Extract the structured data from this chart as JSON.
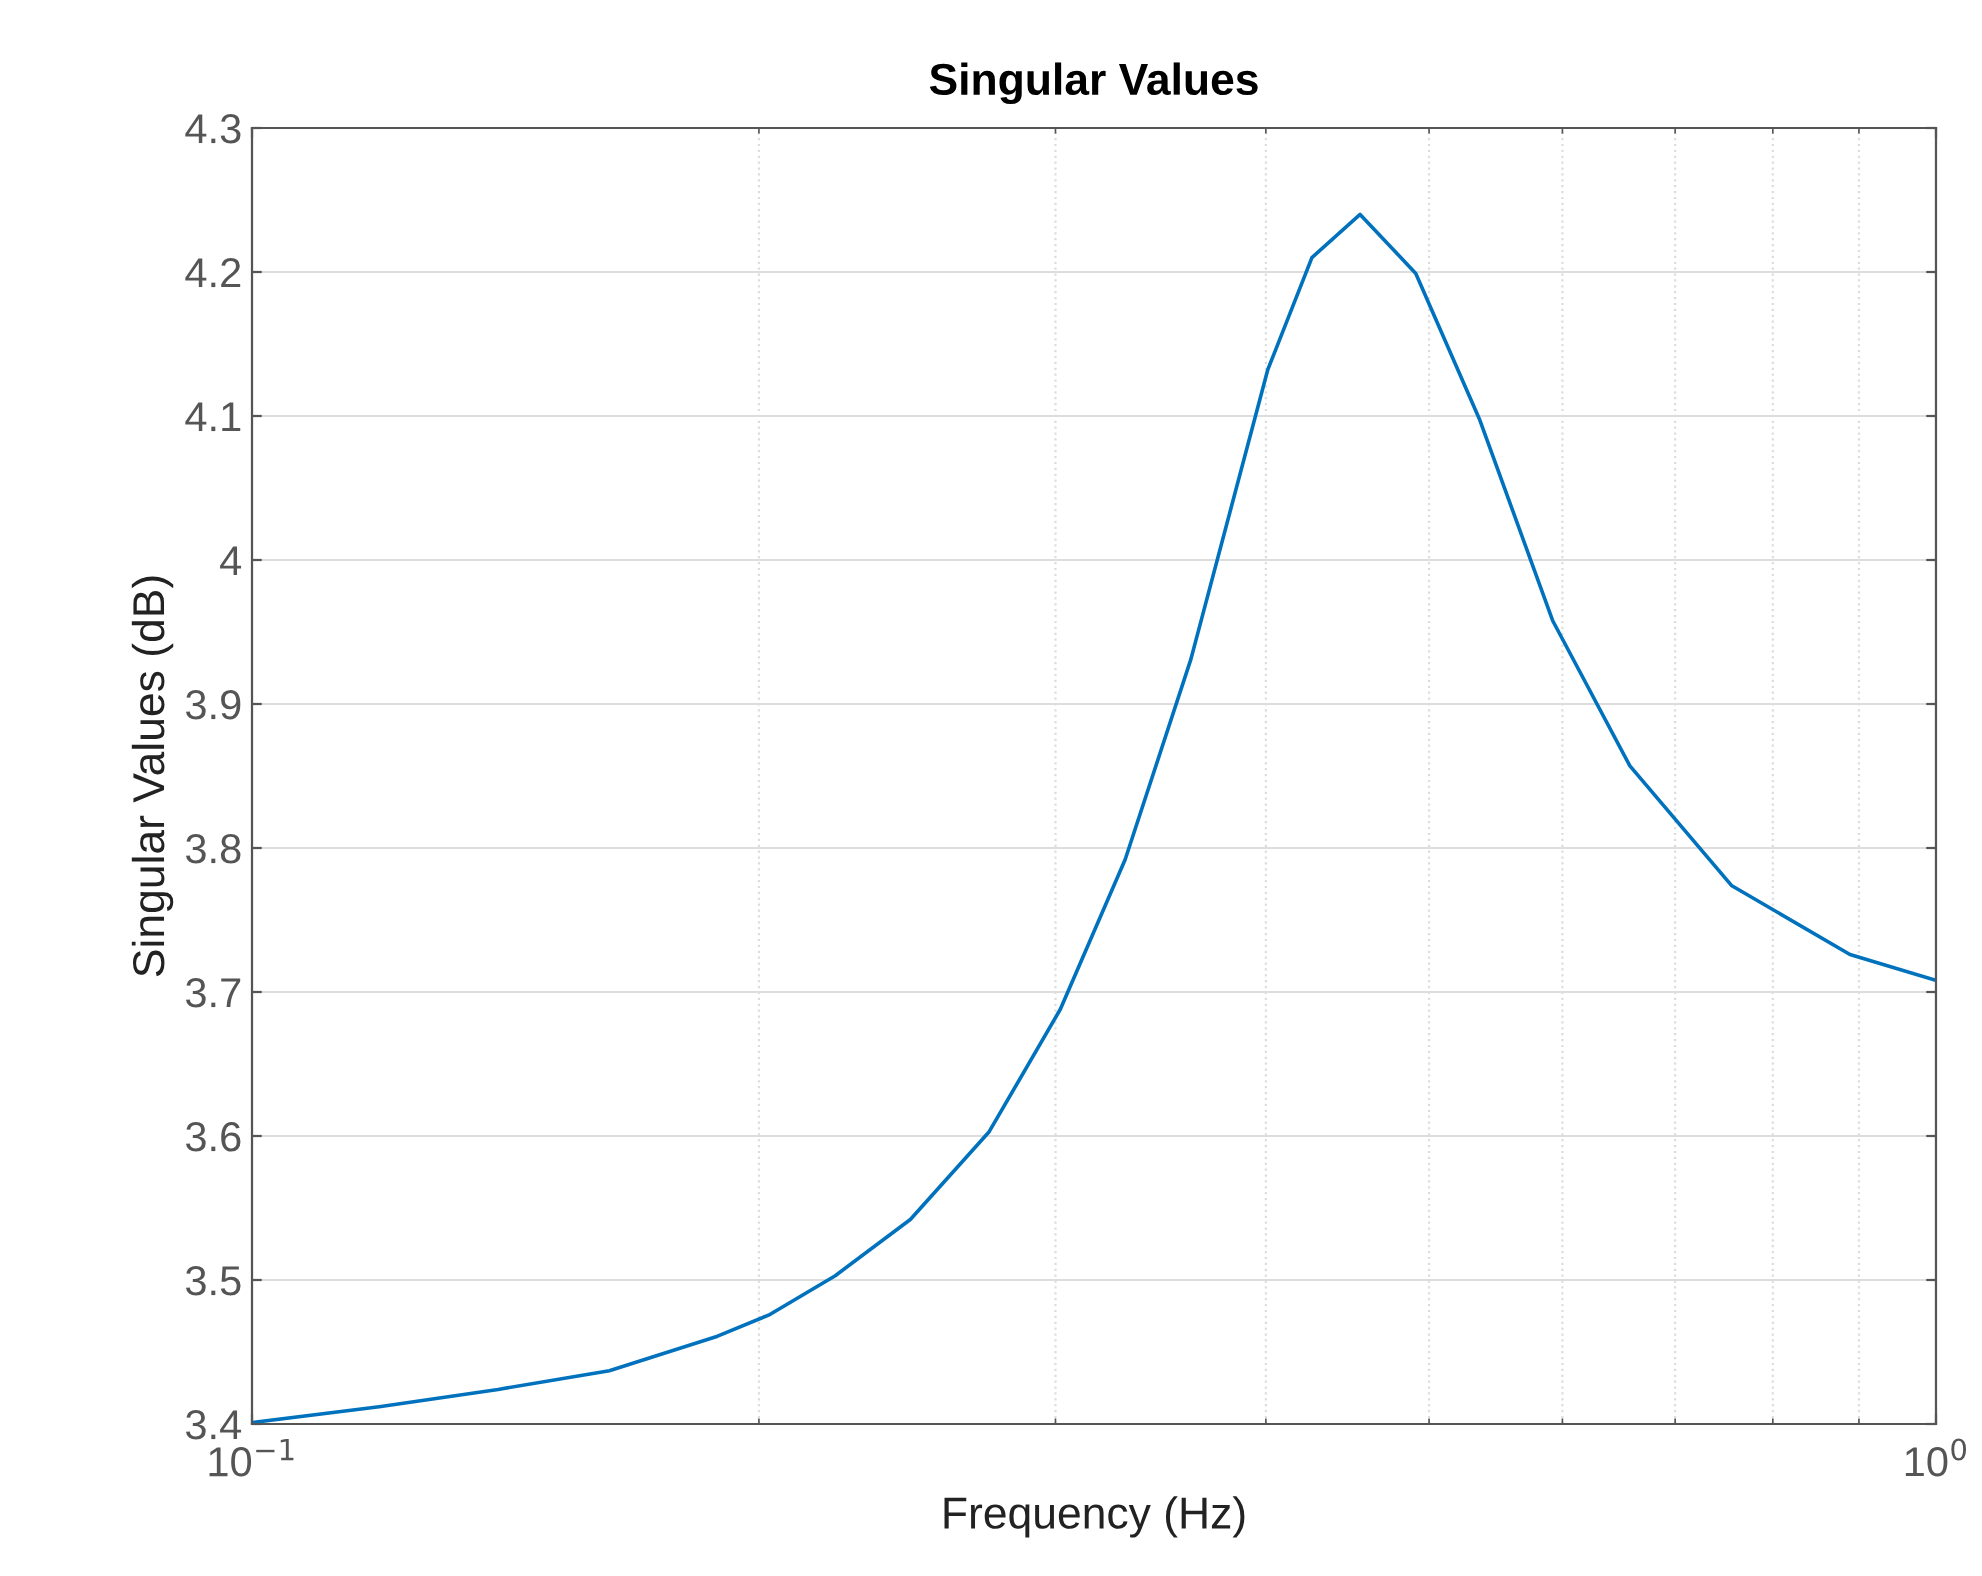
{
  "chart_data": {
    "type": "line",
    "title": "Singular Values",
    "xlabel": "Frequency (Hz)",
    "ylabel": "Singular Values (dB)",
    "log": "x",
    "grid": true,
    "marker": "none",
    "line_style": "solid",
    "xlim": [
      0.1,
      1
    ],
    "xticks": [
      {
        "value": 0.1,
        "label": "10$^{−1}$"
      },
      {
        "value": 1,
        "label": "10$^{0}$"
      }
    ],
    "ylim": [
      3.4,
      4.3
    ],
    "yticks": [
      3.4,
      3.5,
      3.6,
      3.7,
      3.8,
      3.9,
      4,
      4.1,
      4.2,
      4.3
    ],
    "series": [
      {
        "color": "#0072bd",
        "x": [
          0.1,
          0.119,
          0.14,
          0.163,
          0.189,
          0.203,
          0.222,
          0.246,
          0.274,
          0.302,
          0.33,
          0.361,
          0.401,
          0.426,
          0.455,
          0.491,
          0.536,
          0.592,
          0.658,
          0.756,
          0.889,
          1.0
        ],
        "values": [
          3.401,
          3.412,
          3.424,
          3.437,
          3.461,
          3.476,
          3.503,
          3.542,
          3.603,
          3.688,
          3.792,
          3.931,
          4.132,
          4.21,
          4.24,
          4.199,
          4.097,
          3.958,
          3.857,
          3.774,
          3.726,
          3.708
        ]
      }
    ]
  }
}
